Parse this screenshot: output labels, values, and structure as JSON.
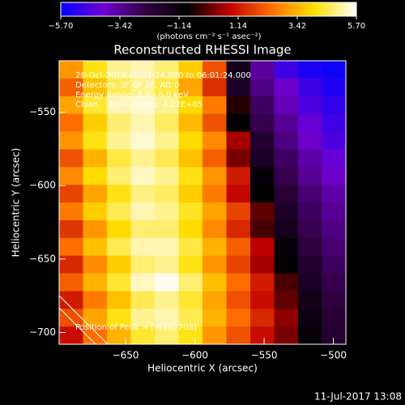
{
  "chart_data": {
    "type": "heatmap",
    "title": "Reconstructed RHESSI Image",
    "x_label": "Heliocentric X (arcsec)",
    "y_label": "Heliocentric Y (arcsec)",
    "colorbar_label": "(photons cm⁻² s⁻¹ asec⁻²)",
    "annotations": [
      "28-Oct-2014 05:51:24.000 to 06:01:24.000",
      "Detectors: 3F 6F 9F, Att 0",
      "Energy Range: 3.0 - 6.0 keV",
      "Clean    Total counts: 4.22E+05"
    ],
    "peak_label": "Position of Peak = [-639,-709]",
    "footer": "11-Jul-2017 13:08",
    "xlim": [
      -698,
      -491
    ],
    "ylim": [
      -708,
      -515
    ],
    "xticks": [
      {
        "value": -650,
        "label": "−650"
      },
      {
        "value": -600,
        "label": "−600"
      },
      {
        "value": -550,
        "label": "−550"
      },
      {
        "value": -500,
        "label": "−500"
      }
    ],
    "yticks": [
      {
        "value": -550,
        "label": "−550"
      },
      {
        "value": -600,
        "label": "−600"
      },
      {
        "value": -650,
        "label": "−650"
      },
      {
        "value": -700,
        "label": "−700"
      }
    ],
    "zlim": [
      -5.7,
      5.7
    ],
    "zticks": [
      {
        "value": -5.7,
        "label": "−5.70"
      },
      {
        "value": -3.42,
        "label": "−3.42"
      },
      {
        "value": -1.14,
        "label": "−1.14"
      },
      {
        "value": 1.14,
        "label": "1.14"
      },
      {
        "value": 3.42,
        "label": "3.42"
      },
      {
        "value": 5.7,
        "label": "5.70"
      }
    ],
    "colormap": [
      "#0000ff",
      "#7000d0",
      "#300040",
      "#000000",
      "#c00000",
      "#ff7000",
      "#ffe000",
      "#ffffff"
    ],
    "values": [
      [
        3.0,
        4.2,
        5.0,
        5.2,
        4.8,
        3.8,
        2.0,
        -1.5,
        -3.5,
        -4.8,
        -5.3,
        -5.5
      ],
      [
        2.2,
        3.6,
        4.6,
        5.0,
        4.5,
        3.2,
        1.5,
        -1.8,
        -3.2,
        -4.0,
        -4.8,
        -5.2
      ],
      [
        3.2,
        4.4,
        5.2,
        5.4,
        5.0,
        4.0,
        2.6,
        -0.5,
        -2.8,
        -3.8,
        -4.6,
        -5.0
      ],
      [
        2.4,
        3.8,
        4.8,
        5.2,
        4.7,
        3.5,
        2.0,
        -0.8,
        -2.6,
        -3.4,
        -4.2,
        -4.8
      ],
      [
        3.0,
        4.2,
        5.0,
        5.4,
        5.0,
        4.0,
        2.8,
        0.6,
        -2.0,
        -3.2,
        -4.0,
        -4.6
      ],
      [
        2.0,
        3.4,
        4.5,
        5.0,
        4.6,
        3.6,
        2.2,
        0.2,
        -1.8,
        -2.8,
        -3.6,
        -4.2
      ],
      [
        2.8,
        4.0,
        4.8,
        5.3,
        5.0,
        4.2,
        3.0,
        1.2,
        -1.0,
        -2.6,
        -3.4,
        -4.0
      ],
      [
        1.8,
        3.2,
        4.2,
        4.9,
        4.7,
        3.8,
        2.6,
        0.9,
        -0.8,
        -2.2,
        -3.0,
        -3.6
      ],
      [
        2.6,
        3.8,
        4.6,
        5.2,
        5.0,
        4.3,
        3.2,
        1.8,
        0.0,
        -1.8,
        -2.8,
        -3.4
      ],
      [
        1.6,
        3.0,
        4.0,
        4.8,
        4.8,
        4.0,
        2.8,
        1.4,
        -0.2,
        -1.6,
        -2.6,
        -3.2
      ],
      [
        2.4,
        3.6,
        4.6,
        5.2,
        5.2,
        4.5,
        3.4,
        2.2,
        0.8,
        -1.0,
        -2.4,
        -3.0
      ],
      [
        1.4,
        2.8,
        3.8,
        4.8,
        5.0,
        4.2,
        3.0,
        1.8,
        0.6,
        -0.8,
        -2.0,
        -2.8
      ],
      [
        2.2,
        3.4,
        4.4,
        5.3,
        5.6,
        4.8,
        3.6,
        2.4,
        1.2,
        -0.2,
        -1.8,
        -2.6
      ],
      [
        1.2,
        2.6,
        3.6,
        4.6,
        5.0,
        4.4,
        3.2,
        2.0,
        1.0,
        0.0,
        -1.4,
        -2.4
      ],
      [
        2.0,
        3.2,
        4.2,
        5.0,
        5.2,
        4.6,
        3.4,
        2.4,
        1.4,
        0.4,
        -1.2,
        -2.2
      ],
      [
        1.0,
        2.4,
        3.4,
        4.4,
        4.8,
        4.2,
        3.0,
        2.0,
        1.0,
        0.2,
        -1.0,
        -2.0
      ]
    ]
  }
}
